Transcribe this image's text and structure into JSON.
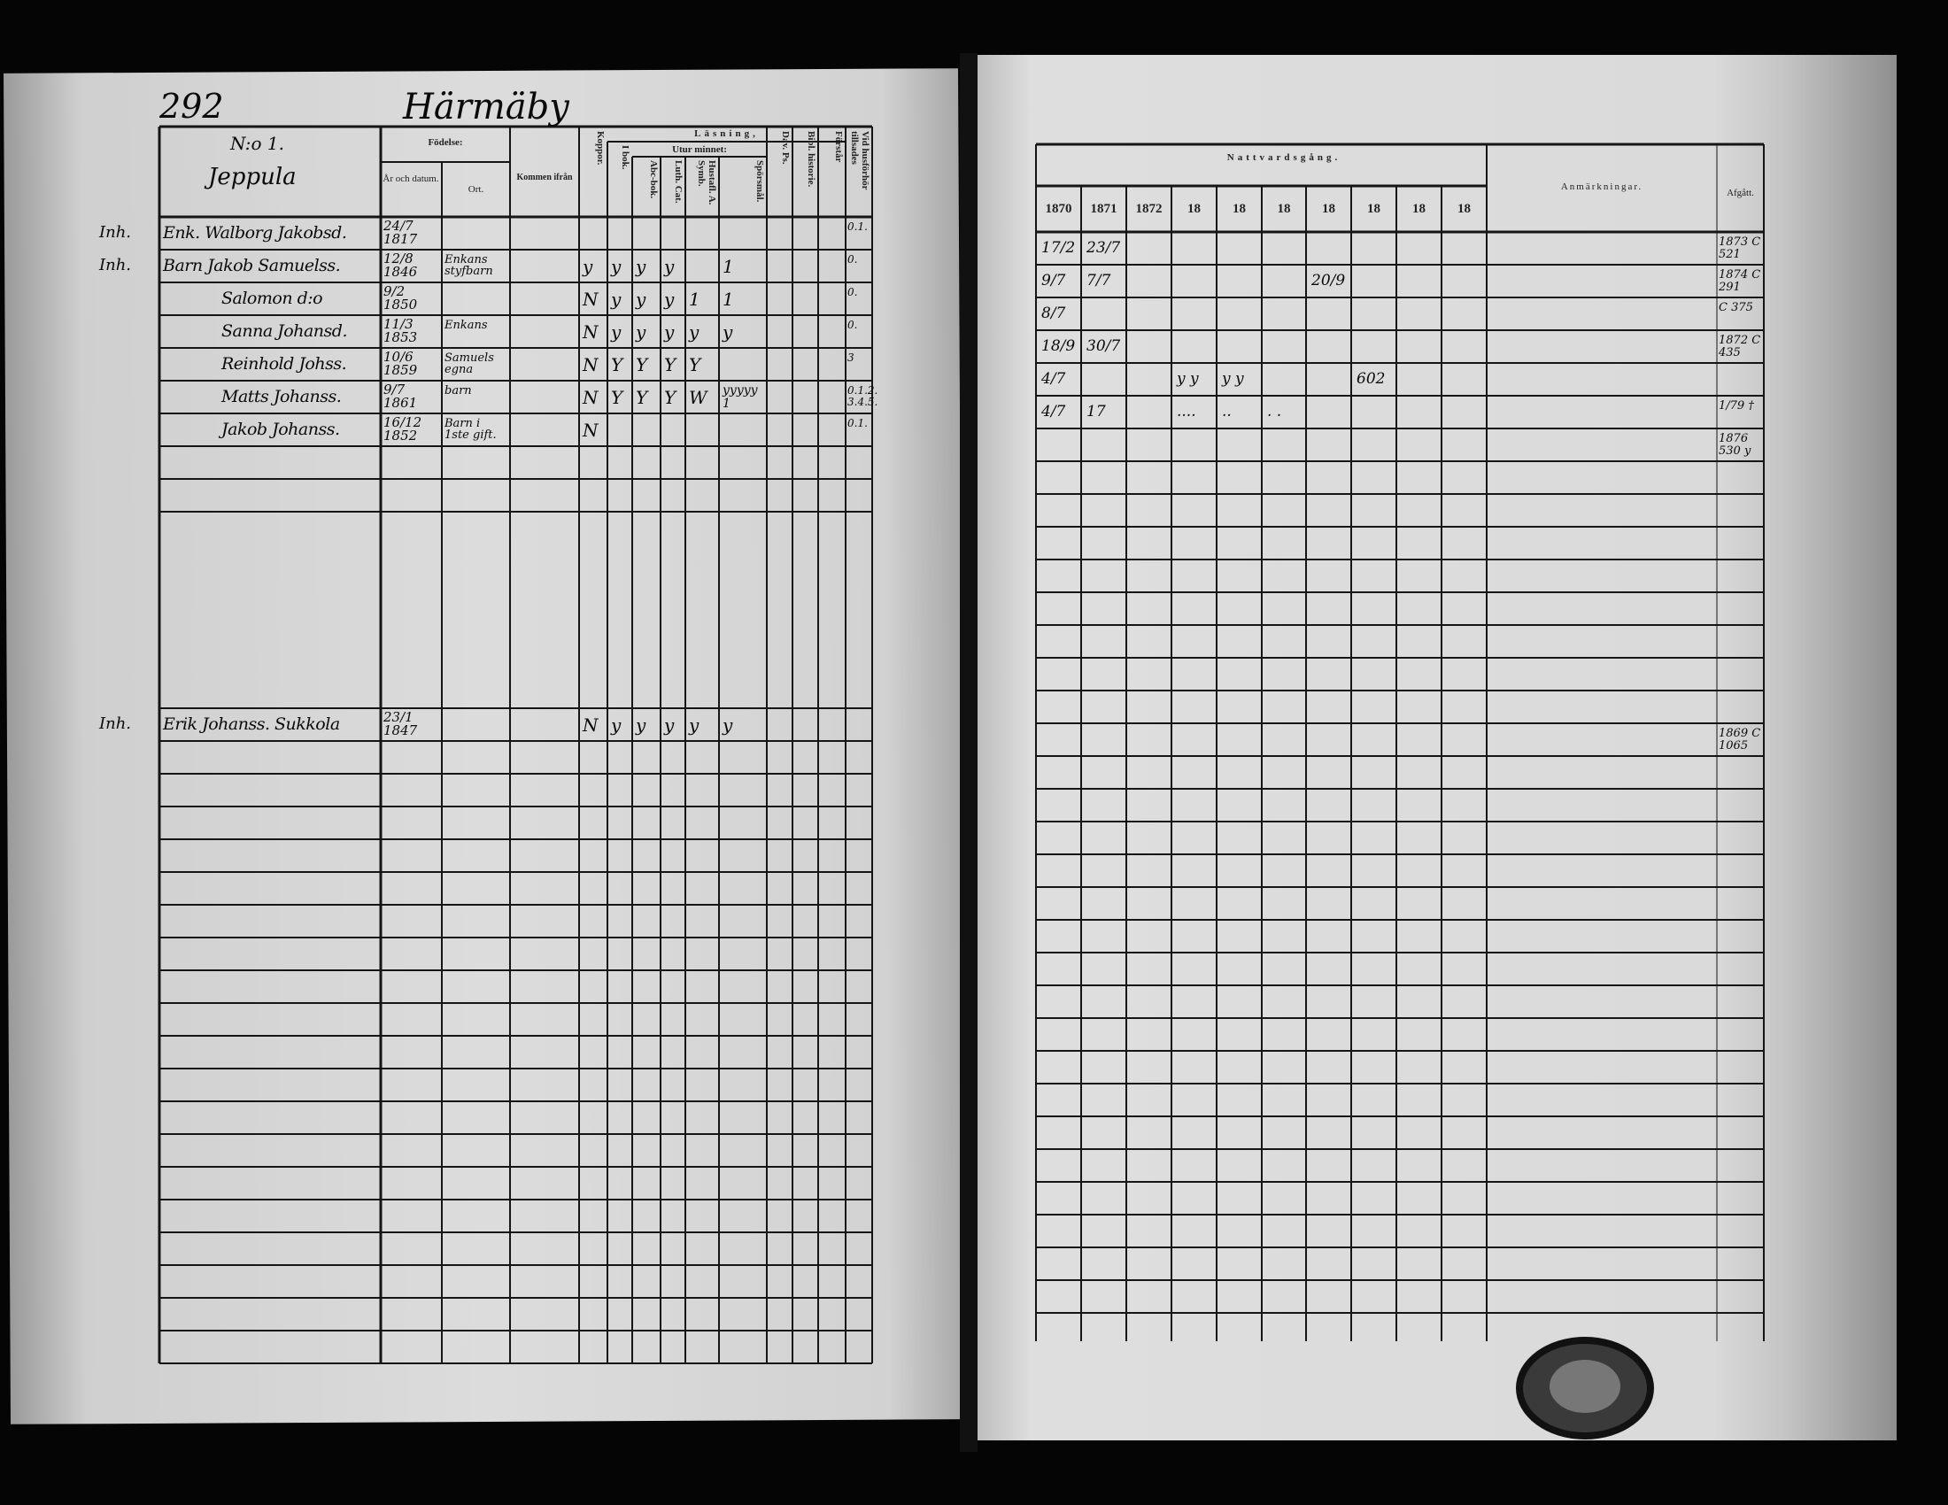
{
  "left_page": {
    "page_number": "292",
    "village": "Härmäby",
    "headers": {
      "no": "N:o 1.",
      "farm": "Jeppula",
      "birth": "Födelse:",
      "birth_year": "År och datum.",
      "birth_place": "Ort.",
      "came_from": "Kommen ifrån",
      "smallpox": "Koppor.",
      "reading": "Läsning,",
      "in_book": "I bok.",
      "by_heart": "Utur minnet:",
      "abc_book": "Abc-bok.",
      "luth_cat": "Luth. Cat.",
      "hustafl": "Hustafl. A. Symb.",
      "sporsmal": "Spörsmål.",
      "dav_ps": "Dav. Ps.",
      "bibl_hist": "Bibl. historie.",
      "forstar": "Förstår",
      "husforhor": "Vid husförhör tillsades"
    },
    "entries": [
      {
        "margin": "Inh.",
        "name": "Enk. Walborg Jakobsd.",
        "birth": "24/7 1817",
        "place": "",
        "marks": [
          "",
          "",
          "",
          "",
          "",
          "",
          "",
          "",
          ""
        ],
        "note": "0.1."
      },
      {
        "margin": "Inh.",
        "name": "Barn Jakob Samuelss.",
        "birth": "12/8 1846",
        "place": "Enkans styfbarn",
        "marks": [
          "y",
          "y",
          "y",
          "y",
          "",
          "1",
          "",
          "",
          ""
        ],
        "note": "0."
      },
      {
        "margin": "",
        "name": "Salomon d:o",
        "birth": "9/2 1850",
        "place": "",
        "marks": [
          "N",
          "y",
          "y",
          "y",
          "1",
          "1",
          "",
          "",
          ""
        ],
        "note": "0."
      },
      {
        "margin": "",
        "name": "Sanna Johansd.",
        "birth": "11/3 1853",
        "place": "Enkans",
        "marks": [
          "N",
          "y",
          "y",
          "y",
          "y",
          "y",
          "",
          "",
          ""
        ],
        "note": "0."
      },
      {
        "margin": "",
        "name": "Reinhold Johss.",
        "birth": "10/6 1859",
        "place": "Samuels egna",
        "marks": [
          "N",
          "Y",
          "Y",
          "Y",
          "Y",
          "",
          "",
          "",
          ""
        ],
        "note": "3"
      },
      {
        "margin": "",
        "name": "Matts Johanss.",
        "birth": "9/7 1861",
        "place": "barn",
        "marks": [
          "N",
          "Y",
          "Y",
          "Y",
          "W",
          "yyyyy 1",
          "",
          "",
          ""
        ],
        "note": "0.1.2. 3.4.5."
      },
      {
        "margin": "",
        "name": "Jakob Johanss.",
        "birth": "16/12 1852",
        "place": "Barn i 1ste gift.",
        "marks": [
          "N",
          "",
          "",
          "",
          "",
          "",
          "",
          "",
          ""
        ],
        "note": "0.1."
      },
      {
        "margin": "Inh.",
        "name": "Erik Johanss. Sukkola",
        "birth": "23/1 1847",
        "place": "",
        "marks": [
          "N",
          "y",
          "y",
          "y",
          "y",
          "y",
          "",
          "",
          ""
        ],
        "note": ""
      }
    ]
  },
  "right_page": {
    "headers": {
      "communion": "Nattvardsgång.",
      "years": [
        "1870",
        "1871",
        "1872",
        "18",
        "18",
        "18",
        "18",
        "18",
        "18",
        "18"
      ],
      "remarks": "Anmärkningar.",
      "departed": "Afgått."
    },
    "entries": [
      {
        "communion": [
          "17/2",
          "23/7",
          "",
          "",
          "",
          "",
          "",
          "",
          "",
          ""
        ],
        "departed": "1873 C 521"
      },
      {
        "communion": [
          "9/7",
          "7/7",
          "",
          "",
          "",
          "",
          "20/9",
          "",
          "",
          ""
        ],
        "departed": "1874 C 291"
      },
      {
        "communion": [
          "8/7",
          "",
          "",
          "",
          "",
          "",
          "",
          "",
          "",
          ""
        ],
        "departed": "C 375"
      },
      {
        "communion": [
          "18/9",
          "30/7",
          "",
          "",
          "",
          "",
          "",
          "",
          "",
          ""
        ],
        "departed": "1872 C 435"
      },
      {
        "communion": [
          "4/7",
          "",
          "",
          "y y",
          "y y",
          "",
          "",
          "602",
          "",
          ""
        ],
        "departed": ""
      },
      {
        "communion": [
          "4/7",
          "17",
          "",
          "....",
          "..",
          ". .",
          "",
          "",
          "",
          ""
        ],
        "departed": "1/79 †"
      },
      {
        "communion": [
          "",
          "",
          "",
          "",
          "",
          "",
          "",
          "",
          "",
          ""
        ],
        "departed": "1876 530 y"
      },
      {
        "communion": [
          "",
          "",
          "",
          "",
          "",
          "",
          "",
          "",
          "",
          ""
        ],
        "departed": "1869 C 1065"
      }
    ]
  }
}
